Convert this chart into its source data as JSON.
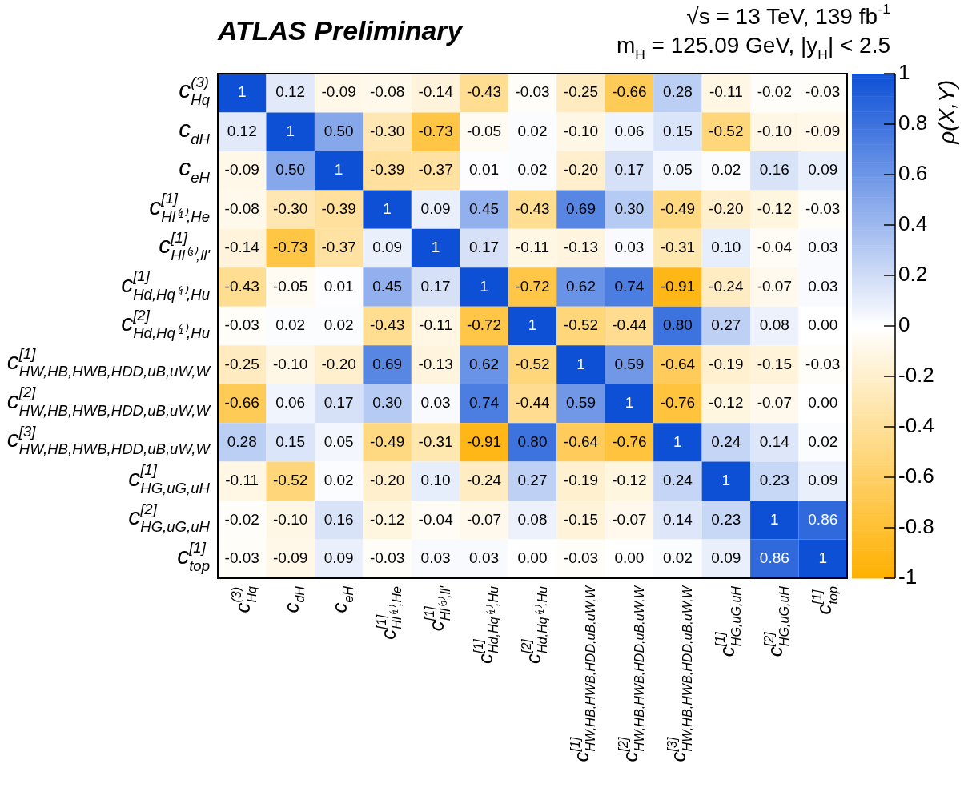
{
  "chart_data": {
    "type": "heatmap",
    "title": "ATLAS Preliminary",
    "subtitle": "√s = 13 TeV, 139 fb$^{-1}$",
    "annotations": [
      "m$_{H}$ = 125.09 GeV, |y$_{H}$| < 2.5"
    ],
    "categories": [
      "c$^{(3)}$$_{Hq}$",
      "c$_{dH}$",
      "c$_{eH}$",
      "c$^{[1]}$$_{Hl⁽¹⁾,He}$",
      "c$^{[1]}$$_{Hl⁽³⁾,ll'}$",
      "c$^{[1]}$$_{Hd,Hq⁽¹⁾,Hu}$",
      "c$^{[2]}$$_{Hd,Hq⁽¹⁾,Hu}$",
      "c$^{[1]}$$_{HW,HB,HWB,HDD,uB,uW,W}$",
      "c$^{[2]}$$_{HW,HB,HWB,HDD,uB,uW,W}$",
      "c$^{[3]}$$_{HW,HB,HWB,HDD,uB,uW,W}$",
      "c$^{[1]}$$_{HG,uG,uH}$",
      "c$^{[2]}$$_{HG,uG,uH}$",
      "c$^{[1]}$$_{top}$"
    ],
    "y_categories": [
      "c$^{(3)}$$_{Hq}$",
      "c$_{dH}$",
      "c$_{eH}$",
      "c$^{[1]}$$_{Hl⁽¹⁾,He}$",
      "c$^{[1]}$$_{Hl⁽³⁾,ll'}$",
      "c$^{[1]}$$_{Hd,Hq⁽¹⁾,Hu}$",
      "c$^{[2]}$$_{Hd,Hq⁽¹⁾,Hu}$",
      "c$^{[1]}$$_{HW,HB,HWB,HDD,uB,uW,W}$",
      "c$^{[2]}$$_{HW,HB,HWB,HDD,uB,uW,W}$",
      "c$^{[3]}$$_{HW,HB,HWB,HDD,uB,uW,W}$",
      "c$^{[1]}$$_{HG,uG,uH}$",
      "c$^{[2]}$$_{HG,uG,uH}$",
      "c$^{[1]}$$_{top}$"
    ],
    "cells": [
      [
        1,
        0.12,
        -0.09,
        -0.08,
        -0.14,
        -0.43,
        -0.03,
        -0.25,
        -0.66,
        0.28,
        -0.11,
        -0.02,
        -0.03
      ],
      [
        0.12,
        1,
        0.5,
        -0.3,
        -0.73,
        -0.05,
        0.02,
        -0.1,
        0.06,
        0.15,
        -0.52,
        -0.1,
        -0.09
      ],
      [
        -0.09,
        0.5,
        1,
        -0.39,
        -0.37,
        0.01,
        0.02,
        -0.2,
        0.17,
        0.05,
        0.02,
        0.16,
        0.09
      ],
      [
        -0.08,
        -0.3,
        -0.39,
        1,
        0.09,
        0.45,
        -0.43,
        0.69,
        0.3,
        -0.49,
        -0.2,
        -0.12,
        -0.03
      ],
      [
        -0.14,
        -0.73,
        -0.37,
        0.09,
        1,
        0.17,
        -0.11,
        -0.13,
        0.03,
        -0.31,
        0.1,
        -0.04,
        0.03
      ],
      [
        -0.43,
        -0.05,
        0.01,
        0.45,
        0.17,
        1,
        -0.72,
        0.62,
        0.74,
        -0.91,
        -0.24,
        -0.07,
        0.03
      ],
      [
        -0.03,
        0.02,
        0.02,
        -0.43,
        -0.11,
        -0.72,
        1,
        -0.52,
        -0.44,
        0.8,
        0.27,
        0.08,
        0.0
      ],
      [
        -0.25,
        -0.1,
        -0.2,
        0.69,
        -0.13,
        0.62,
        -0.52,
        1,
        0.59,
        -0.64,
        -0.19,
        -0.15,
        -0.03
      ],
      [
        -0.66,
        0.06,
        0.17,
        0.3,
        0.03,
        0.74,
        -0.44,
        0.59,
        1,
        -0.76,
        -0.12,
        -0.07,
        0.0
      ],
      [
        0.28,
        0.15,
        0.05,
        -0.49,
        -0.31,
        -0.91,
        0.8,
        -0.64,
        -0.76,
        1,
        0.24,
        0.14,
        0.02
      ],
      [
        -0.11,
        -0.52,
        0.02,
        -0.2,
        0.1,
        -0.24,
        0.27,
        -0.19,
        -0.12,
        0.24,
        1,
        0.23,
        0.09
      ],
      [
        -0.02,
        -0.1,
        0.16,
        -0.12,
        -0.04,
        -0.07,
        0.08,
        -0.15,
        -0.07,
        0.14,
        0.23,
        1,
        0.86
      ],
      [
        -0.03,
        -0.09,
        0.09,
        -0.03,
        0.03,
        0.03,
        0.0,
        -0.03,
        0.0,
        0.02,
        0.09,
        0.86,
        1
      ]
    ],
    "cell_labels": [
      [
        "1",
        "0.12",
        "-0.09",
        "-0.08",
        "-0.14",
        "-0.43",
        "-0.03",
        "-0.25",
        "-0.66",
        "0.28",
        "-0.11",
        "-0.02",
        "-0.03"
      ],
      [
        "0.12",
        "1",
        "0.50",
        "-0.30",
        "-0.73",
        "-0.05",
        "0.02",
        "-0.10",
        "0.06",
        "0.15",
        "-0.52",
        "-0.10",
        "-0.09"
      ],
      [
        "-0.09",
        "0.50",
        "1",
        "-0.39",
        "-0.37",
        "0.01",
        "0.02",
        "-0.20",
        "0.17",
        "0.05",
        "0.02",
        "0.16",
        "0.09"
      ],
      [
        "-0.08",
        "-0.30",
        "-0.39",
        "1",
        "0.09",
        "0.45",
        "-0.43",
        "0.69",
        "0.30",
        "-0.49",
        "-0.20",
        "-0.12",
        "-0.03"
      ],
      [
        "-0.14",
        "-0.73",
        "-0.37",
        "0.09",
        "1",
        "0.17",
        "-0.11",
        "-0.13",
        "0.03",
        "-0.31",
        "0.10",
        "-0.04",
        "0.03"
      ],
      [
        "-0.43",
        "-0.05",
        "0.01",
        "0.45",
        "0.17",
        "1",
        "-0.72",
        "0.62",
        "0.74",
        "-0.91",
        "-0.24",
        "-0.07",
        "0.03"
      ],
      [
        "-0.03",
        "0.02",
        "0.02",
        "-0.43",
        "-0.11",
        "-0.72",
        "1",
        "-0.52",
        "-0.44",
        "0.80",
        "0.27",
        "0.08",
        "0.00"
      ],
      [
        "-0.25",
        "-0.10",
        "-0.20",
        "0.69",
        "-0.13",
        "0.62",
        "-0.52",
        "1",
        "0.59",
        "-0.64",
        "-0.19",
        "-0.15",
        "-0.03"
      ],
      [
        "-0.66",
        "0.06",
        "0.17",
        "0.30",
        "0.03",
        "0.74",
        "-0.44",
        "0.59",
        "1",
        "-0.76",
        "-0.12",
        "-0.07",
        "0.00"
      ],
      [
        "0.28",
        "0.15",
        "0.05",
        "-0.49",
        "-0.31",
        "-0.91",
        "0.80",
        "-0.64",
        "-0.76",
        "1",
        "0.24",
        "0.14",
        "0.02"
      ],
      [
        "-0.11",
        "-0.52",
        "0.02",
        "-0.20",
        "0.10",
        "-0.24",
        "0.27",
        "-0.19",
        "-0.12",
        "0.24",
        "1",
        "0.23",
        "0.09"
      ],
      [
        "-0.02",
        "-0.10",
        "0.16",
        "-0.12",
        "-0.04",
        "-0.07",
        "0.08",
        "-0.15",
        "-0.07",
        "0.14",
        "0.23",
        "1",
        "0.86"
      ],
      [
        "-0.03",
        "-0.09",
        "0.09",
        "-0.03",
        "0.03",
        "0.03",
        "0.00",
        "-0.03",
        "0.00",
        "0.02",
        "0.09",
        "0.86",
        "1"
      ]
    ],
    "clim": [
      -1,
      1
    ],
    "cticks": [
      -1,
      -0.8,
      -0.6,
      -0.4,
      -0.2,
      0,
      0.2,
      0.4,
      0.6,
      0.8,
      1
    ],
    "clabel": "ρ(X,Y)"
  }
}
